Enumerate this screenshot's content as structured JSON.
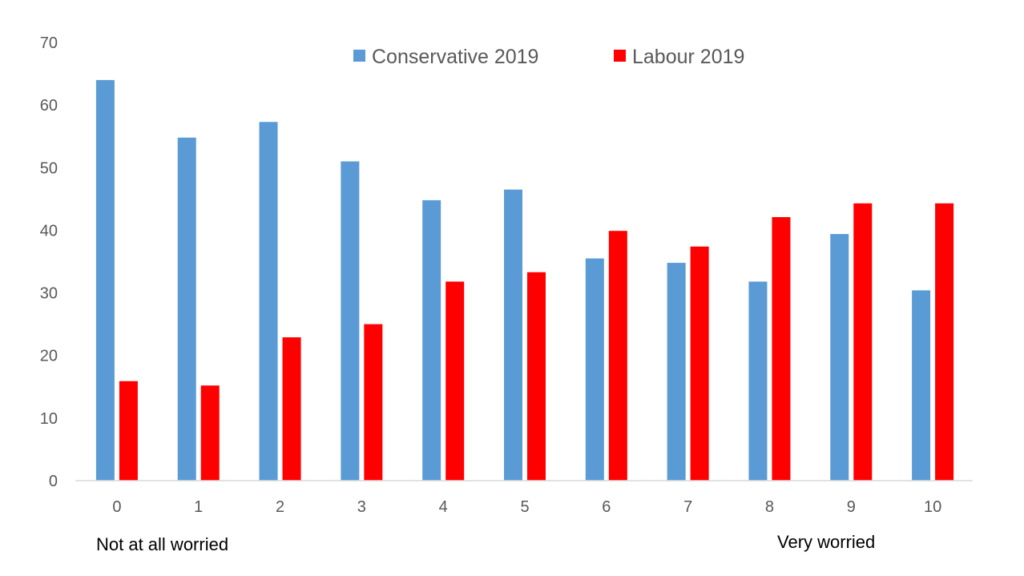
{
  "chart_data": {
    "type": "bar",
    "title": "",
    "xlabel": "",
    "ylabel": "",
    "categories": [
      "0",
      "1",
      "2",
      "3",
      "4",
      "5",
      "6",
      "7",
      "8",
      "9",
      "10"
    ],
    "series": [
      {
        "name": "Conservative 2019",
        "color": "#5B9BD5",
        "values": [
          64,
          54.8,
          57.3,
          51,
          44.8,
          46.5,
          35.5,
          34.8,
          31.8,
          39.4,
          30.4
        ]
      },
      {
        "name": "Labour 2019",
        "color": "#FF0000",
        "values": [
          15.9,
          15.2,
          22.9,
          25,
          31.8,
          33.3,
          39.9,
          37.4,
          42.1,
          44.3,
          44.3
        ]
      }
    ],
    "yticks": [
      "0",
      "10",
      "20",
      "30",
      "40",
      "50",
      "60",
      "70"
    ],
    "ylim": [
      0,
      70
    ],
    "grid": false,
    "legend_position": "top",
    "annotations": {
      "left": "Not at all worried",
      "right": "Very worried"
    }
  }
}
